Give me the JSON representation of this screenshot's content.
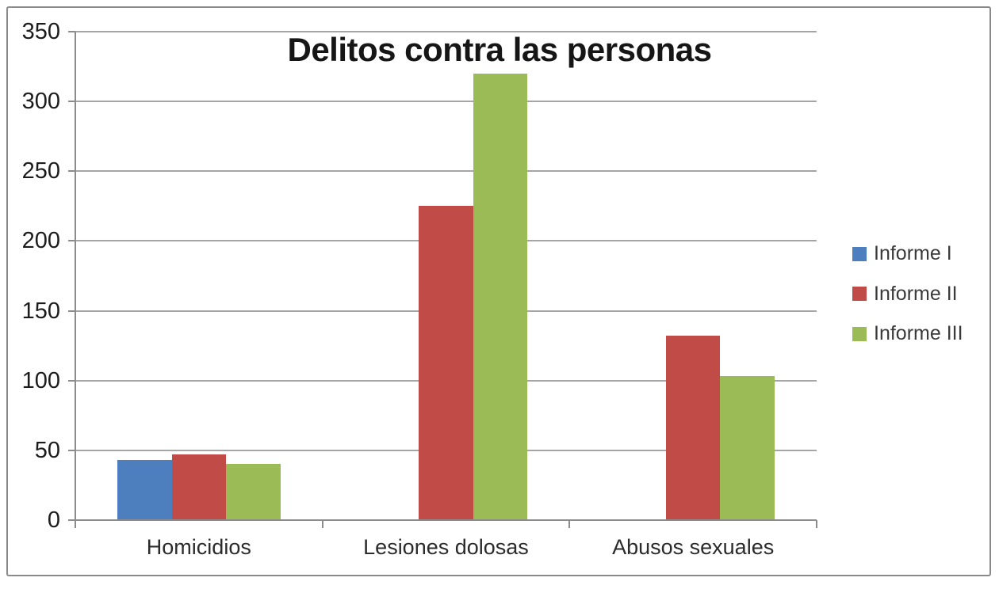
{
  "chart_data": {
    "type": "bar",
    "title": "Delitos contra las personas",
    "categories": [
      "Homicidios",
      "Lesiones dolosas",
      "Abusos sexuales"
    ],
    "series": [
      {
        "name": "Informe I",
        "color": "#4d7ebd",
        "values": [
          43,
          0,
          0
        ]
      },
      {
        "name": "Informe II",
        "color": "#c04b47",
        "values": [
          47,
          225,
          132
        ]
      },
      {
        "name": "Informe III",
        "color": "#9bbb57",
        "values": [
          40,
          320,
          103
        ]
      }
    ],
    "ylim": [
      0,
      350
    ],
    "ytick_interval": 50,
    "yticks": [
      0,
      50,
      100,
      150,
      200,
      250,
      300,
      350
    ],
    "grid": true,
    "legend_position": "right"
  },
  "colors": {
    "background": "#ffffff",
    "frame_border": "#8a8a8a",
    "gridline": "#a6a6a6",
    "axis": "#8c8c8c",
    "title_text": "#161616",
    "axis_label_text": "#2b2b2b",
    "legend_text": "#3a3a3a"
  }
}
